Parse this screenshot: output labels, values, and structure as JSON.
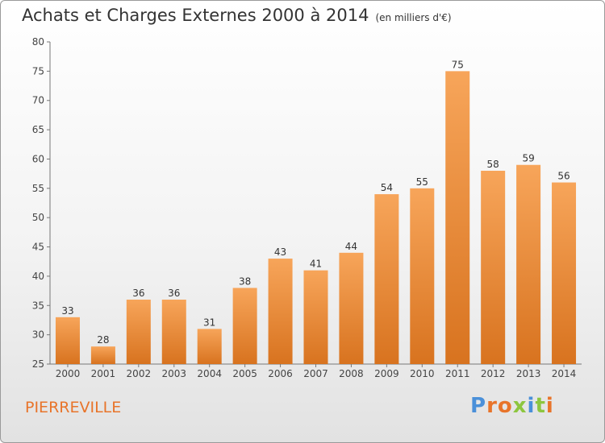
{
  "header": {
    "title": "Achats et Charges Externes 2000 à 2014",
    "unit": "(en milliers d'€)"
  },
  "footer": {
    "commune": "PIERREVILLE",
    "logo_text": "Proxiti"
  },
  "colors": {
    "bar_light": "#f7a55a",
    "bar_dark": "#d8731f",
    "commune": "#e8742a",
    "logo": [
      "#4a90d9",
      "#e8742a",
      "#e8742a",
      "#8dc63f",
      "#4a90d9",
      "#8dc63f",
      "#e8742a"
    ]
  },
  "chart_data": {
    "type": "bar",
    "title": "Achats et Charges Externes 2000 à 2014",
    "subtitle": "(en milliers d'€)",
    "categories": [
      "2000",
      "2001",
      "2002",
      "2003",
      "2004",
      "2005",
      "2006",
      "2007",
      "2008",
      "2009",
      "2010",
      "2011",
      "2012",
      "2013",
      "2014"
    ],
    "values": [
      33,
      28,
      36,
      36,
      31,
      38,
      43,
      41,
      44,
      54,
      55,
      75,
      58,
      59,
      56
    ],
    "ylim": [
      25,
      80
    ],
    "yticks": [
      25,
      30,
      35,
      40,
      45,
      50,
      55,
      60,
      65,
      70,
      75,
      80
    ],
    "grid": false,
    "data_labels": true
  }
}
